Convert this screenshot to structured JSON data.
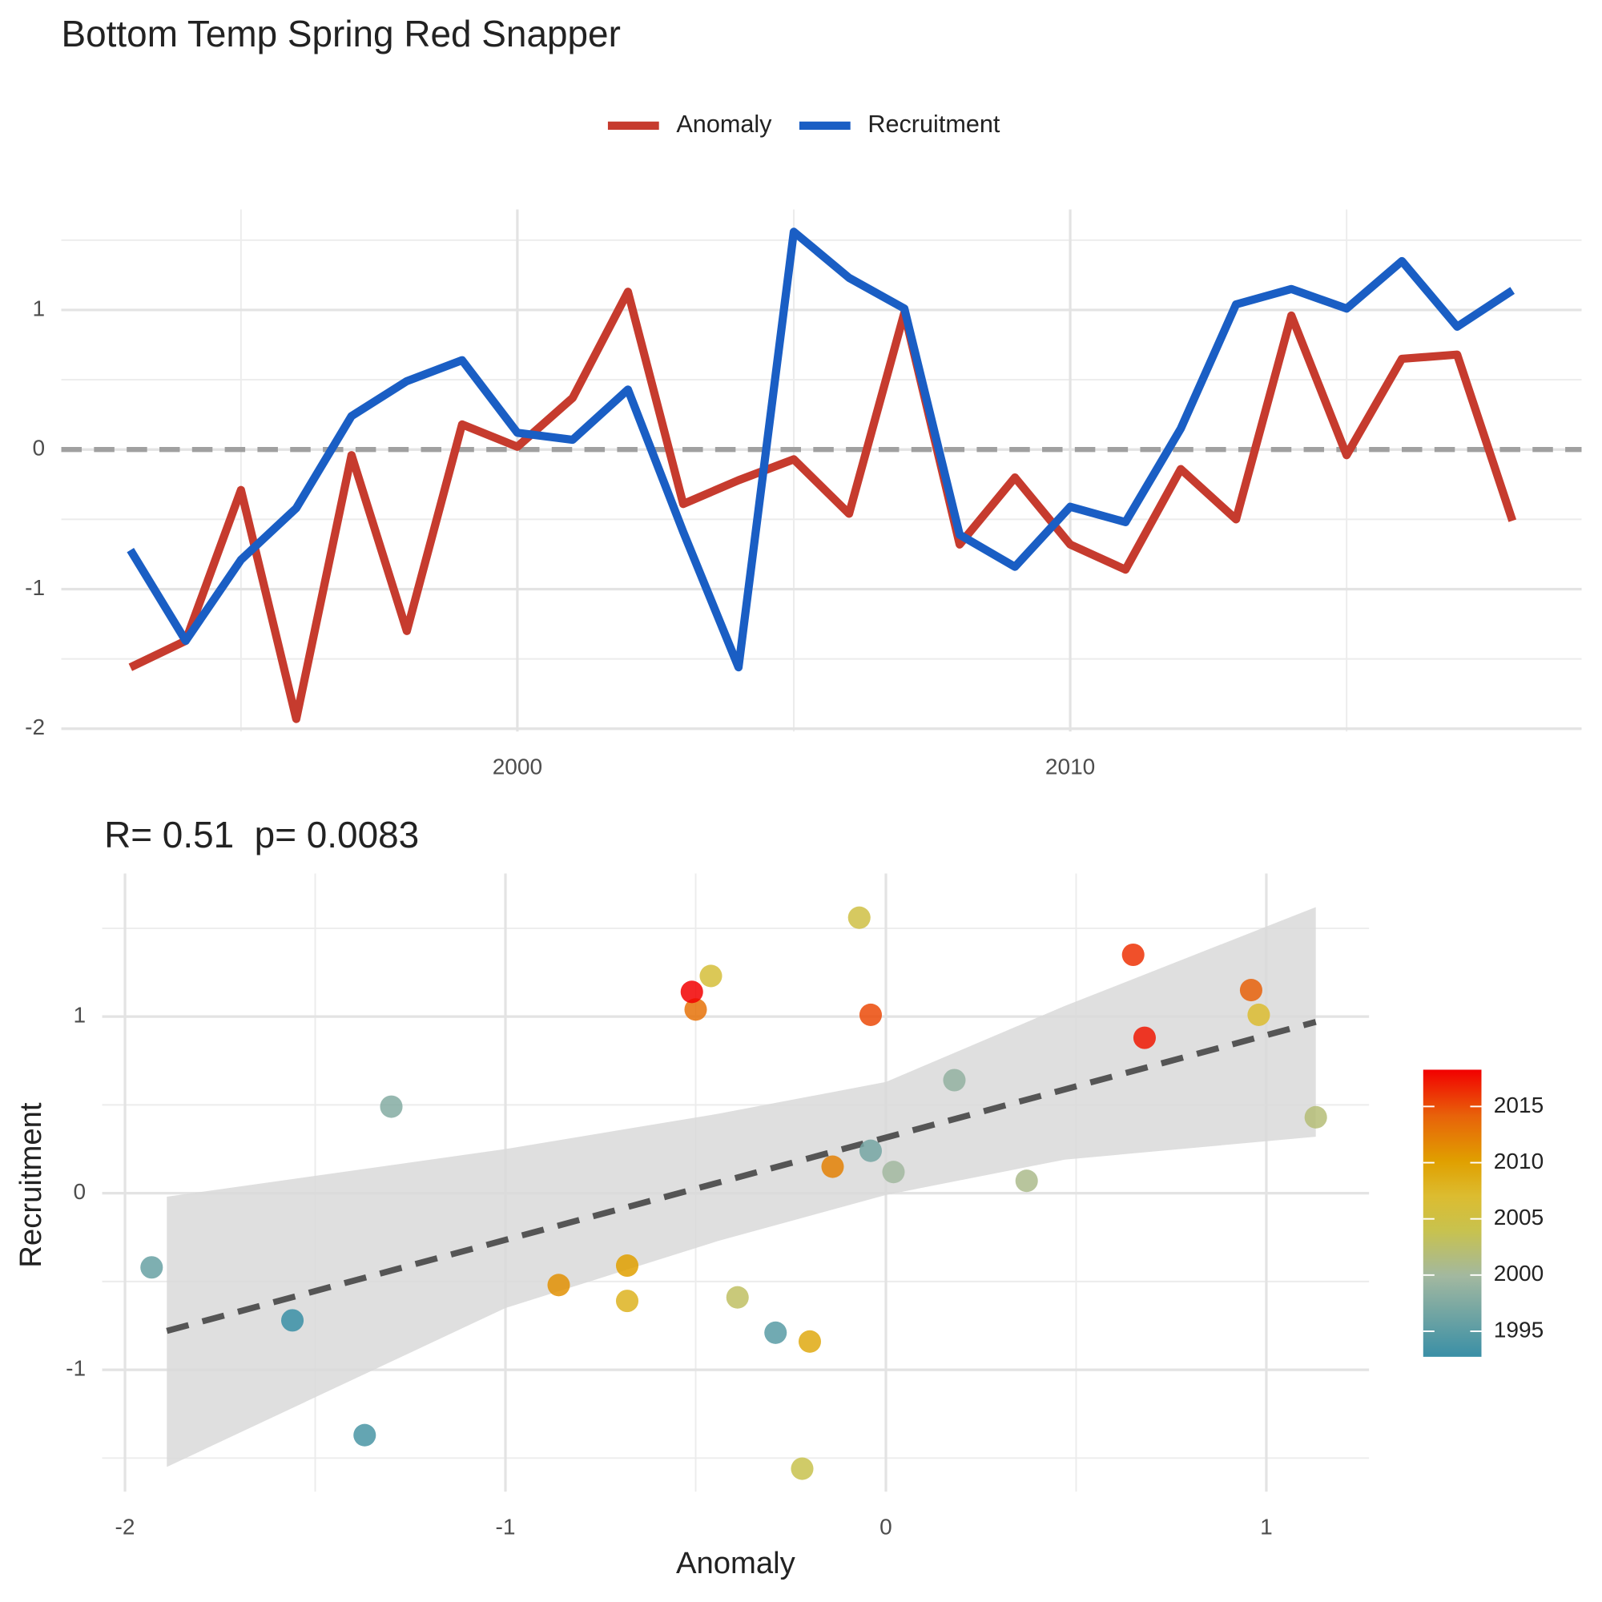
{
  "chart_data": [
    {
      "type": "line",
      "title": "Bottom Temp Spring Red Snapper",
      "x": [
        1993,
        1994,
        1995,
        1996,
        1997,
        1998,
        1999,
        2000,
        2001,
        2002,
        2003,
        2004,
        2005,
        2006,
        2007,
        2008,
        2009,
        2010,
        2011,
        2012,
        2013,
        2014,
        2015,
        2016,
        2017,
        2018
      ],
      "series": [
        {
          "name": "Anomaly",
          "color": "#c63b2e",
          "values": [
            -1.56,
            -1.37,
            -0.29,
            -1.93,
            -0.04,
            -1.3,
            0.18,
            0.02,
            0.37,
            1.13,
            -0.39,
            -0.22,
            -0.07,
            -0.46,
            0.98,
            -0.68,
            -0.2,
            -0.68,
            -0.86,
            -0.14,
            -0.5,
            0.96,
            -0.04,
            0.65,
            0.68,
            -0.51
          ]
        },
        {
          "name": "Recruitment",
          "color": "#1a5ec4",
          "values": [
            -0.72,
            -1.37,
            -0.79,
            -0.42,
            0.24,
            0.49,
            0.64,
            0.12,
            0.07,
            0.43,
            -0.59,
            -1.56,
            1.56,
            1.23,
            1.01,
            -0.61,
            -0.84,
            -0.41,
            -0.52,
            0.15,
            1.04,
            1.15,
            1.01,
            1.35,
            0.88,
            1.14
          ]
        }
      ],
      "xlim": [
        1991.75,
        2019.25
      ],
      "xticks": [
        2000,
        2010
      ],
      "xminor": [
        1995,
        2005,
        2015
      ],
      "ylim": [
        -2.02,
        1.72
      ],
      "yticks": [
        -2,
        -1,
        0,
        1
      ],
      "yminor": [
        -1.5,
        -0.5,
        0.5,
        1.5
      ],
      "hline": 0,
      "grid": true,
      "legend": "top"
    },
    {
      "type": "scatter",
      "annotation": "R= 0.51  p= 0.0083",
      "xlabel": "Anomaly",
      "ylabel": "Recruitment",
      "x": [
        -1.56,
        -1.37,
        -0.29,
        -1.93,
        -0.04,
        -1.3,
        0.18,
        0.02,
        0.37,
        1.13,
        -0.39,
        -0.22,
        -0.07,
        -0.46,
        0.98,
        -0.68,
        -0.2,
        -0.68,
        -0.86,
        -0.14,
        -0.5,
        0.96,
        -0.04,
        0.65,
        0.68,
        -0.51
      ],
      "y": [
        -0.72,
        -1.37,
        -0.79,
        -0.42,
        0.24,
        0.49,
        0.64,
        0.12,
        0.07,
        0.43,
        -0.59,
        -1.56,
        1.56,
        1.23,
        1.01,
        -0.61,
        -0.84,
        -0.41,
        -0.52,
        0.15,
        1.04,
        1.15,
        1.01,
        1.35,
        0.88,
        1.14
      ],
      "color_values": [
        1993,
        1994,
        1995,
        1996,
        1997,
        1998,
        1999,
        2000,
        2001,
        2002,
        2003,
        2004,
        2005,
        2006,
        2007,
        2008,
        2009,
        2010,
        2011,
        2012,
        2013,
        2014,
        2015,
        2016,
        2017,
        2018
      ],
      "colorscale": {
        "limits": [
          1993,
          2018
        ],
        "stops": [
          1993,
          2000,
          2004,
          2007,
          2010,
          2014,
          2018
        ],
        "colors": [
          "#3a8fa6",
          "#a2b8a0",
          "#c8c24e",
          "#dcbc30",
          "#e0a000",
          "#e8620a",
          "#f20000"
        ],
        "ticks": [
          1995,
          2000,
          2005,
          2010,
          2015
        ]
      },
      "fit": {
        "x": [
          -1.89,
          1.13
        ],
        "y": [
          -0.78,
          0.97
        ],
        "color": "#555555"
      },
      "band": {
        "x": [
          -1.89,
          -1,
          -0.44,
          0,
          0.47,
          1.13
        ],
        "upper": [
          -0.02,
          0.25,
          0.45,
          0.63,
          1.06,
          1.62
        ],
        "lower": [
          -1.55,
          -0.65,
          -0.27,
          -0.01,
          0.19,
          0.32
        ],
        "color": "#d9d9d9"
      },
      "xlim": [
        -2.06,
        1.27
      ],
      "xticks": [
        -2,
        -1,
        0,
        1
      ],
      "xminor": [
        -1.5,
        -0.5,
        0.5
      ],
      "ylim": [
        -1.69,
        1.81
      ],
      "yticks": [
        -1,
        0,
        1
      ],
      "yminor": [
        -1.5,
        -0.5,
        0.5,
        1.5
      ],
      "grid": true,
      "legend": "right"
    }
  ]
}
